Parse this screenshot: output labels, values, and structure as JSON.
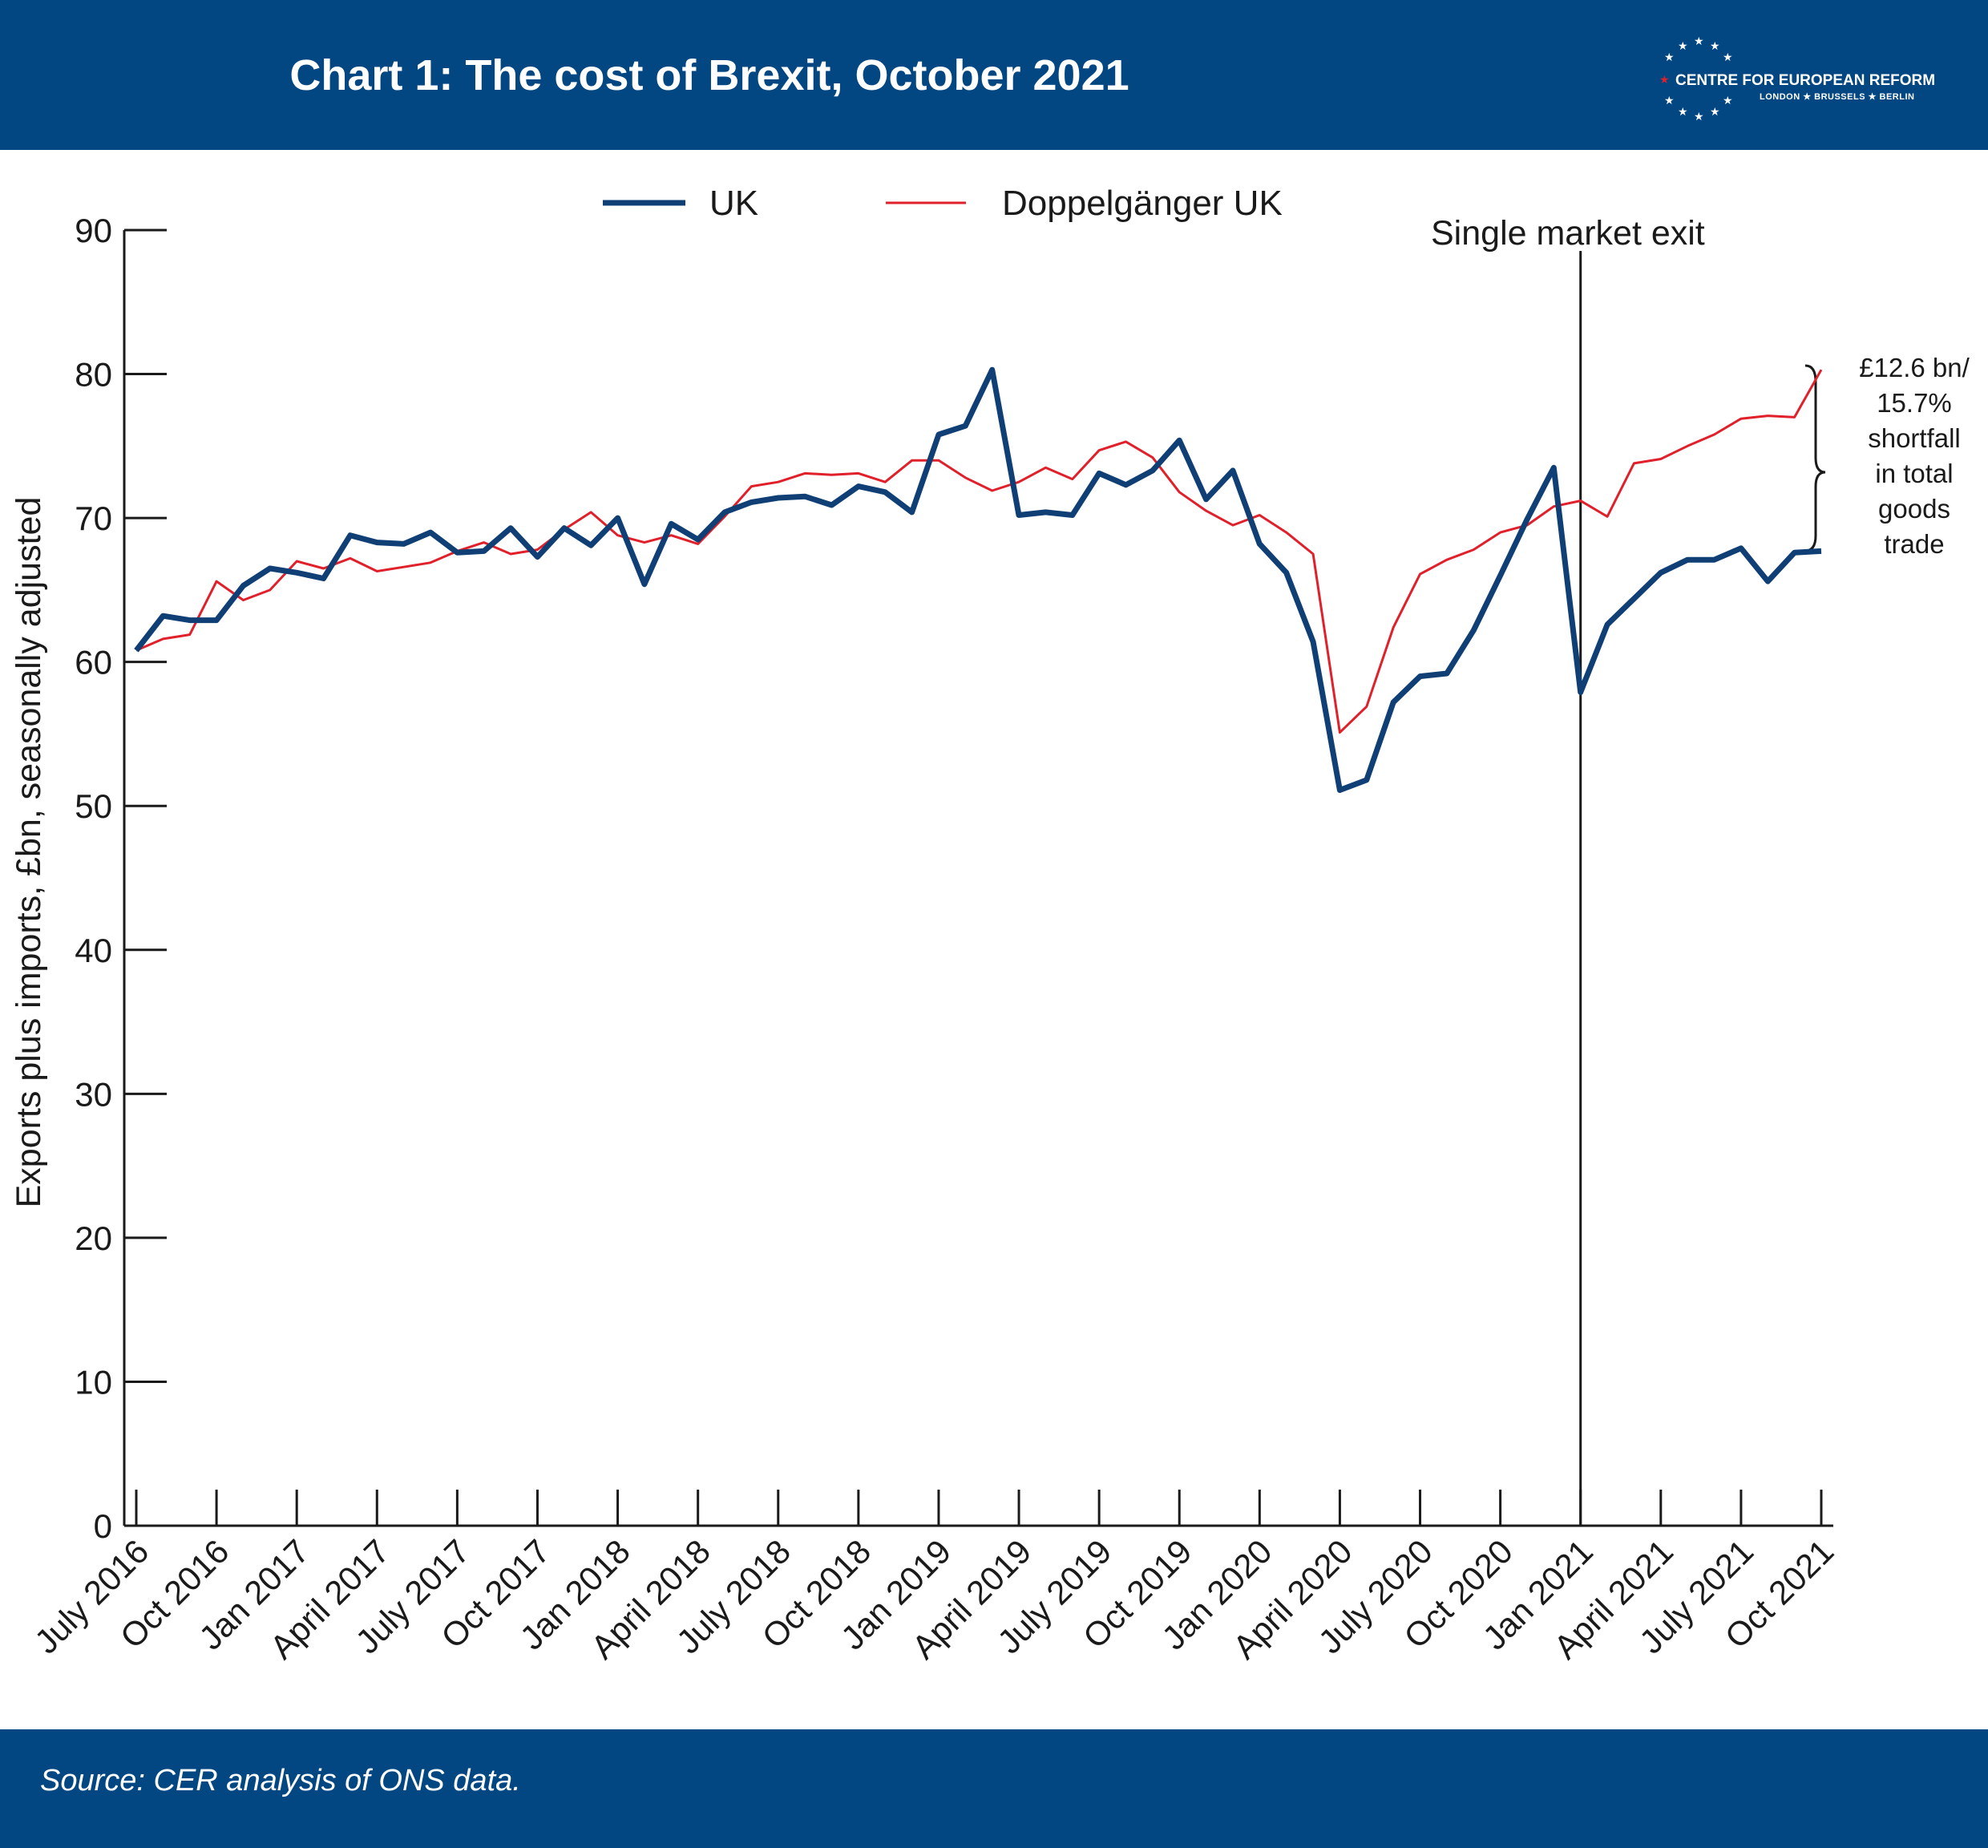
{
  "header": {
    "title": "Chart 1: The cost of Brexit, October 2021",
    "logo_name": "CENTRE FOR EUROPEAN REFORM",
    "logo_cities": "LONDON ★ BRUSSELS ★ BERLIN",
    "logo_icon": "eu-star-circle-icon"
  },
  "footer": {
    "source": "Source: CER analysis of ONS data."
  },
  "colors": {
    "band": "#024682",
    "uk": "#0f3f74",
    "doppelganger": "#e0202a",
    "axis": "#1a1a1a"
  },
  "chart_data": {
    "type": "line",
    "title": "Chart 1: The cost of Brexit, October 2021",
    "ylabel": "Exports plus imports, £bn, seasonally adjusted",
    "xlabel": "",
    "ylim": [
      0,
      90
    ],
    "yticks": [
      0,
      10,
      20,
      30,
      40,
      50,
      60,
      70,
      80,
      90
    ],
    "grid": false,
    "legend_position": "top-center",
    "x_tick_labels": [
      "July 2016",
      "Oct 2016",
      "Jan 2017",
      "April 2017",
      "July 2017",
      "Oct 2017",
      "Jan 2018",
      "April 2018",
      "July 2018",
      "Oct 2018",
      "Jan 2019",
      "April 2019",
      "July 2019",
      "Oct 2019",
      "Jan 2020",
      "April 2020",
      "July 2020",
      "Oct 2020",
      "Jan 2021",
      "April 2021",
      "July 2021",
      "Oct 2021"
    ],
    "x": [
      "Jul 2016",
      "Aug 2016",
      "Sep 2016",
      "Oct 2016",
      "Nov 2016",
      "Dec 2016",
      "Jan 2017",
      "Feb 2017",
      "Mar 2017",
      "Apr 2017",
      "May 2017",
      "Jun 2017",
      "Jul 2017",
      "Aug 2017",
      "Sep 2017",
      "Oct 2017",
      "Nov 2017",
      "Dec 2017",
      "Jan 2018",
      "Feb 2018",
      "Mar 2018",
      "Apr 2018",
      "May 2018",
      "Jun 2018",
      "Jul 2018",
      "Aug 2018",
      "Sep 2018",
      "Oct 2018",
      "Nov 2018",
      "Dec 2018",
      "Jan 2019",
      "Feb 2019",
      "Mar 2019",
      "Apr 2019",
      "May 2019",
      "Jun 2019",
      "Jul 2019",
      "Aug 2019",
      "Sep 2019",
      "Oct 2019",
      "Nov 2019",
      "Dec 2019",
      "Jan 2020",
      "Feb 2020",
      "Mar 2020",
      "Apr 2020",
      "May 2020",
      "Jun 2020",
      "Jul 2020",
      "Aug 2020",
      "Sep 2020",
      "Oct 2020",
      "Nov 2020",
      "Dec 2020",
      "Jan 2021",
      "Feb 2021",
      "Mar 2021",
      "Apr 2021",
      "May 2021",
      "Jun 2021",
      "Jul 2021",
      "Aug 2021",
      "Sep 2021",
      "Oct 2021"
    ],
    "series": [
      {
        "name": "UK",
        "values": [
          60.8,
          63.2,
          62.9,
          62.9,
          65.3,
          66.5,
          66.2,
          65.8,
          68.8,
          68.3,
          68.2,
          69.0,
          67.6,
          67.7,
          69.3,
          67.3,
          69.3,
          68.1,
          70.0,
          65.4,
          69.6,
          68.5,
          70.4,
          71.1,
          71.4,
          71.5,
          70.9,
          72.2,
          71.8,
          70.4,
          75.8,
          76.4,
          80.3,
          70.2,
          70.4,
          70.2,
          73.1,
          72.3,
          73.3,
          75.4,
          71.3,
          73.3,
          68.2,
          66.2,
          61.4,
          51.1,
          51.8,
          57.2,
          59.0,
          59.2,
          62.2,
          66.0,
          69.9,
          73.5,
          57.9,
          62.6,
          64.4,
          66.2,
          67.1,
          67.1,
          67.9,
          65.6,
          67.6,
          67.7
        ]
      },
      {
        "name": "Doppelgänger UK",
        "values": [
          60.8,
          61.6,
          61.9,
          65.6,
          64.3,
          65.0,
          67.0,
          66.5,
          67.2,
          66.3,
          66.6,
          66.9,
          67.7,
          68.3,
          67.5,
          67.8,
          69.2,
          70.4,
          68.8,
          68.3,
          68.8,
          68.2,
          70.1,
          72.2,
          72.5,
          73.1,
          73.0,
          73.1,
          72.5,
          74.0,
          74.0,
          72.8,
          71.9,
          72.5,
          73.5,
          72.7,
          74.7,
          75.3,
          74.2,
          71.8,
          70.5,
          69.5,
          70.2,
          69.0,
          67.5,
          55.1,
          56.9,
          62.4,
          66.1,
          67.1,
          67.8,
          69.0,
          69.5,
          70.8,
          71.2,
          70.1,
          73.8,
          74.1,
          75.0,
          75.8,
          76.9,
          77.1,
          77.0,
          80.3
        ]
      }
    ],
    "annotations": {
      "event_label": "Single market exit",
      "event_x": "Jan 2021",
      "shortfall_lines": [
        "£12.6 bn/",
        "15.7%",
        "shortfall",
        "in total",
        "goods",
        "trade"
      ]
    }
  }
}
